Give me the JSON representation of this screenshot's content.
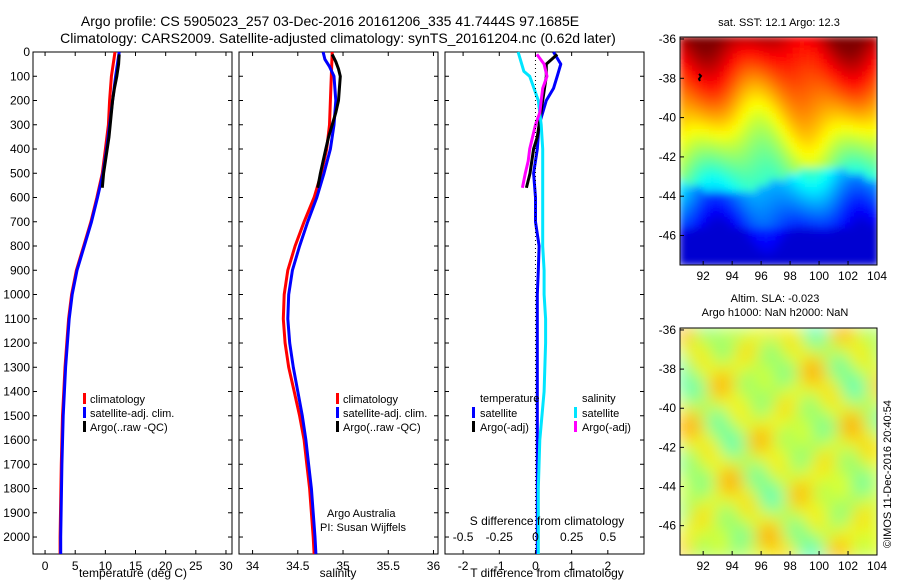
{
  "header": {
    "title_line1": "Argo profile: CS 5905023_257 03-Dec-2016 20161206_335 41.7444S 97.1685E",
    "title_line2": "Climatology: CARS2009. Satellite-adjusted climatology: synTS_20161204.nc (0.62d later)"
  },
  "map_titles": {
    "sst": "sat. SST: 12.1 Argo: 12.3",
    "sla_line1": "Altim. SLA: -0.023",
    "sla_line2": "Argo h1000: NaN h2000: NaN"
  },
  "credit": {
    "line1": "Argo Australia",
    "line2": "PI: Susan Wijffels",
    "stamp": "©IMOS 11-Dec-2016 20:40:54"
  },
  "colors": {
    "climatology": "#ff0000",
    "satellite": "#0000ff",
    "argo": "#000000",
    "salinity_satellite": "#00e5ff",
    "salinity_argo": "#ff00ff"
  },
  "chart_data": [
    {
      "type": "line",
      "panel": "temperature",
      "xlabel": "temperature (deg C)",
      "xlim": [
        -2,
        31
      ],
      "ylim": [
        2070,
        0
      ],
      "xticks": [
        0,
        5,
        10,
        15,
        20,
        25,
        30
      ],
      "yticks": [
        0,
        100,
        200,
        300,
        400,
        500,
        600,
        700,
        800,
        900,
        1000,
        1100,
        1200,
        1300,
        1400,
        1500,
        1600,
        1700,
        1800,
        1900,
        2000
      ],
      "legend": [
        "climatology",
        "satellite-adj. clim.",
        "Argo(..raw -QC)"
      ],
      "series": [
        {
          "name": "climatology",
          "depth": [
            0,
            100,
            200,
            300,
            400,
            500,
            600,
            700,
            800,
            900,
            1000,
            1100,
            1200,
            1300,
            1400,
            1500,
            1700,
            2000,
            2070
          ],
          "values": [
            11.6,
            11.0,
            10.7,
            10.5,
            10.0,
            9.5,
            8.6,
            7.6,
            6.4,
            5.2,
            4.4,
            3.9,
            3.6,
            3.3,
            3.1,
            2.9,
            2.7,
            2.5,
            2.5
          ]
        },
        {
          "name": "satellite-adj. clim.",
          "depth": [
            0,
            100,
            200,
            300,
            400,
            500,
            600,
            700,
            800,
            900,
            1000,
            1100,
            1200,
            1300,
            1400,
            1500,
            1700,
            2000,
            2070
          ],
          "values": [
            12.3,
            11.7,
            11.2,
            10.7,
            10.2,
            9.6,
            8.7,
            7.7,
            6.5,
            5.3,
            4.5,
            4.0,
            3.7,
            3.4,
            3.2,
            3.0,
            2.8,
            2.6,
            2.6
          ]
        },
        {
          "name": "Argo(..raw -QC)",
          "depth": [
            10,
            50,
            100,
            150,
            200,
            250,
            300,
            350,
            400,
            450,
            500,
            560
          ],
          "values": [
            12.3,
            12.2,
            11.9,
            11.5,
            11.2,
            11.0,
            10.8,
            10.6,
            10.3,
            10.0,
            9.7,
            9.5
          ]
        }
      ]
    },
    {
      "type": "line",
      "panel": "salinity",
      "xlabel": "salinity",
      "xlim": [
        33.85,
        36.05
      ],
      "ylim": [
        2070,
        0
      ],
      "xticks": [
        34,
        34.5,
        35,
        35.5,
        36
      ],
      "legend": [
        "climatology",
        "satellite-adj. clim.",
        "Argo(..raw -QC)"
      ],
      "series": [
        {
          "name": "climatology",
          "depth": [
            0,
            100,
            200,
            300,
            400,
            500,
            600,
            700,
            800,
            900,
            1000,
            1100,
            1200,
            1300,
            1400,
            1500,
            1600,
            1700,
            1800,
            1900,
            2000,
            2070
          ],
          "values": [
            34.88,
            34.87,
            34.86,
            34.85,
            34.82,
            34.76,
            34.68,
            34.57,
            34.47,
            34.39,
            34.35,
            34.34,
            34.36,
            34.4,
            34.46,
            34.52,
            34.57,
            34.6,
            34.63,
            34.65,
            34.67,
            34.68
          ]
        },
        {
          "name": "satellite-adj. clim.",
          "depth": [
            0,
            30,
            60,
            100,
            200,
            300,
            400,
            500,
            600,
            700,
            800,
            900,
            1000,
            1100,
            1200,
            1300,
            1400,
            1500,
            1600,
            1700,
            1800,
            1900,
            2000,
            2070
          ],
          "values": [
            34.78,
            34.8,
            34.85,
            34.9,
            34.92,
            34.9,
            34.86,
            34.79,
            34.71,
            34.61,
            34.52,
            34.44,
            34.4,
            34.39,
            34.41,
            34.45,
            34.5,
            34.55,
            34.59,
            34.62,
            34.65,
            34.67,
            34.69,
            34.7
          ]
        },
        {
          "name": "Argo(..raw -QC)",
          "depth": [
            10,
            40,
            70,
            100,
            150,
            200,
            250,
            300,
            350,
            400,
            450,
            500,
            560
          ],
          "values": [
            34.88,
            34.92,
            34.95,
            34.97,
            34.96,
            34.95,
            34.92,
            34.88,
            34.84,
            34.81,
            34.78,
            34.75,
            34.72
          ]
        }
      ]
    },
    {
      "type": "line",
      "panel": "differences",
      "xlabel": "T difference from climatology",
      "xlabel_top": "S difference from climatology",
      "xlim": [
        -2.5,
        3.0
      ],
      "ylim": [
        2070,
        0
      ],
      "xticks": [
        -2,
        -1,
        0,
        1,
        2
      ],
      "xticks_top": [
        "-0.5",
        "-0.25",
        "0",
        "0.25",
        "0.5"
      ],
      "legend_temperature_title": "temperature",
      "legend_salinity_title": "salinity",
      "legend_entries": [
        "satellite",
        "Argo(-adj)"
      ],
      "series": [
        {
          "name": "satellite",
          "quantity": "temperature",
          "depth": [
            0,
            50,
            100,
            150,
            200,
            250,
            300,
            400,
            500,
            600,
            700,
            800,
            900,
            1000,
            1200,
            1500,
            2000,
            2070
          ],
          "values": [
            0.5,
            0.7,
            0.6,
            0.5,
            0.3,
            0.2,
            0.1,
            0.05,
            -0.05,
            0.0,
            0.0,
            0.1,
            0.08,
            0.05,
            0.05,
            0.05,
            0.05,
            0.05
          ]
        },
        {
          "name": "Argo(-adj)",
          "quantity": "temperature",
          "depth": [
            10,
            50,
            100,
            150,
            200,
            250,
            300,
            350,
            400,
            450,
            500,
            560
          ],
          "values": [
            0.6,
            0.3,
            0.3,
            0.25,
            0.2,
            0.15,
            0.1,
            0.05,
            -0.05,
            -0.1,
            -0.15,
            -0.25
          ]
        },
        {
          "name": "satellite",
          "quantity": "salinity",
          "depth": [
            0,
            80,
            100,
            200,
            300,
            400,
            500,
            600,
            700,
            800,
            900,
            1000,
            1100,
            1200,
            1400,
            1600,
            1800,
            2000,
            2070
          ],
          "values": [
            -0.12,
            -0.08,
            -0.04,
            0.02,
            0.04,
            0.05,
            0.05,
            0.05,
            0.05,
            0.05,
            0.06,
            0.06,
            0.07,
            0.07,
            0.06,
            0.03,
            0.02,
            0.02,
            0.02
          ]
        },
        {
          "name": "Argo(-adj)",
          "quantity": "salinity",
          "depth": [
            10,
            50,
            100,
            150,
            200,
            250,
            300,
            350,
            400,
            450,
            500,
            560
          ],
          "values": [
            0.01,
            0.06,
            0.08,
            0.05,
            0.04,
            0.03,
            0.0,
            -0.02,
            -0.04,
            -0.05,
            -0.07,
            -0.09
          ]
        }
      ]
    },
    {
      "type": "heatmap",
      "panel": "sst_map",
      "xticks": [
        92,
        94,
        96,
        98,
        100,
        102,
        104
      ],
      "yticks": [
        -36,
        -38,
        -40,
        -42,
        -44,
        -46
      ],
      "xlim": [
        90.4,
        104
      ],
      "ylim": [
        -47.5,
        -35.9
      ]
    },
    {
      "type": "heatmap",
      "panel": "sla_map",
      "xticks": [
        92,
        94,
        96,
        98,
        100,
        102,
        104
      ],
      "yticks": [
        -36,
        -38,
        -40,
        -42,
        -44,
        -46
      ],
      "xlim": [
        90.4,
        104
      ],
      "ylim": [
        -47.5,
        -35.9
      ]
    }
  ]
}
